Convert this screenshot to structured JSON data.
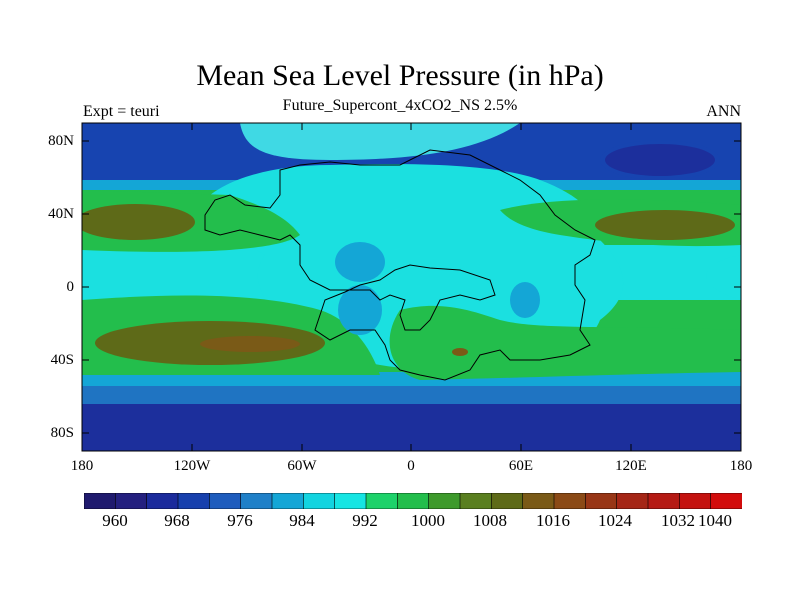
{
  "header": {
    "title": "Mean Sea Level Pressure (in hPa)",
    "subtitle": "Future_Supercont_4xCO2_NS 2.5%",
    "left_label": "Expt = teuri",
    "right_label": "ANN"
  },
  "axes": {
    "lat_labels": [
      "80N",
      "40N",
      "0",
      "40S",
      "80S"
    ],
    "lon_labels": [
      "180",
      "120W",
      "60W",
      "0",
      "60E",
      "120E",
      "180"
    ]
  },
  "colorbar": {
    "labels": [
      "960",
      "968",
      "976",
      "984",
      "992",
      "1000",
      "1008",
      "1016",
      "1024",
      "1032",
      "1040"
    ],
    "colors": [
      "#1f1a6e",
      "#24207f",
      "#1b2b9c",
      "#1740ad",
      "#1e5cbd",
      "#1f80c8",
      "#14a6d6",
      "#12d4e0",
      "#16e5e3",
      "#1dd26a",
      "#23be4c",
      "#3e9a2c",
      "#5a7f20",
      "#5e6a18",
      "#7a5a17",
      "#8b4a16",
      "#983616",
      "#a52616",
      "#b51a14",
      "#c4120f",
      "#d20c0c"
    ],
    "land_outline_color": "#000000"
  },
  "map_colors": {
    "deep_low": "#1c2f9c",
    "low": "#1744b0",
    "mid_low": "#1f74c2",
    "light": "#14a6d6",
    "cyan": "#1be0e0",
    "light_cyan": "#3fd9e4",
    "green": "#23be4c",
    "dark_green": "#3e9a2c",
    "olive": "#5e6a18",
    "brown": "#7a5a17"
  }
}
